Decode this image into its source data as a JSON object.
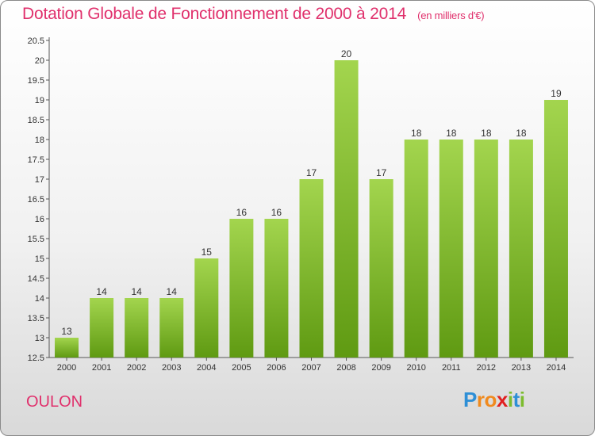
{
  "header": {
    "title": "Dotation Globale de Fonctionnement de 2000 à 2014",
    "subtitle": "(en milliers d'€)"
  },
  "commune": "OULON",
  "brand": {
    "letters": [
      "P",
      "r",
      "o",
      "x",
      "i",
      "t",
      "i"
    ]
  },
  "colors": {
    "title": "#e0306c",
    "bar_light": "#9fd24a",
    "bar_dark": "#5f9a12",
    "axis": "#555555"
  },
  "chart_data": {
    "type": "bar",
    "title": "Dotation Globale de Fonctionnement de 2000 à 2014",
    "categories": [
      "2000",
      "2001",
      "2002",
      "2003",
      "2004",
      "2005",
      "2006",
      "2007",
      "2008",
      "2009",
      "2010",
      "2011",
      "2012",
      "2013",
      "2014"
    ],
    "values": [
      13,
      14,
      14,
      14,
      15,
      16,
      16,
      17,
      20,
      17,
      18,
      18,
      18,
      18,
      19
    ],
    "ylim": [
      12.5,
      20.5
    ],
    "yticks": [
      12.5,
      13,
      13.5,
      14,
      14.5,
      15,
      15.5,
      16,
      16.5,
      17,
      17.5,
      18,
      18.5,
      19,
      19.5,
      20,
      20.5
    ],
    "grid": false,
    "legend": "none"
  }
}
